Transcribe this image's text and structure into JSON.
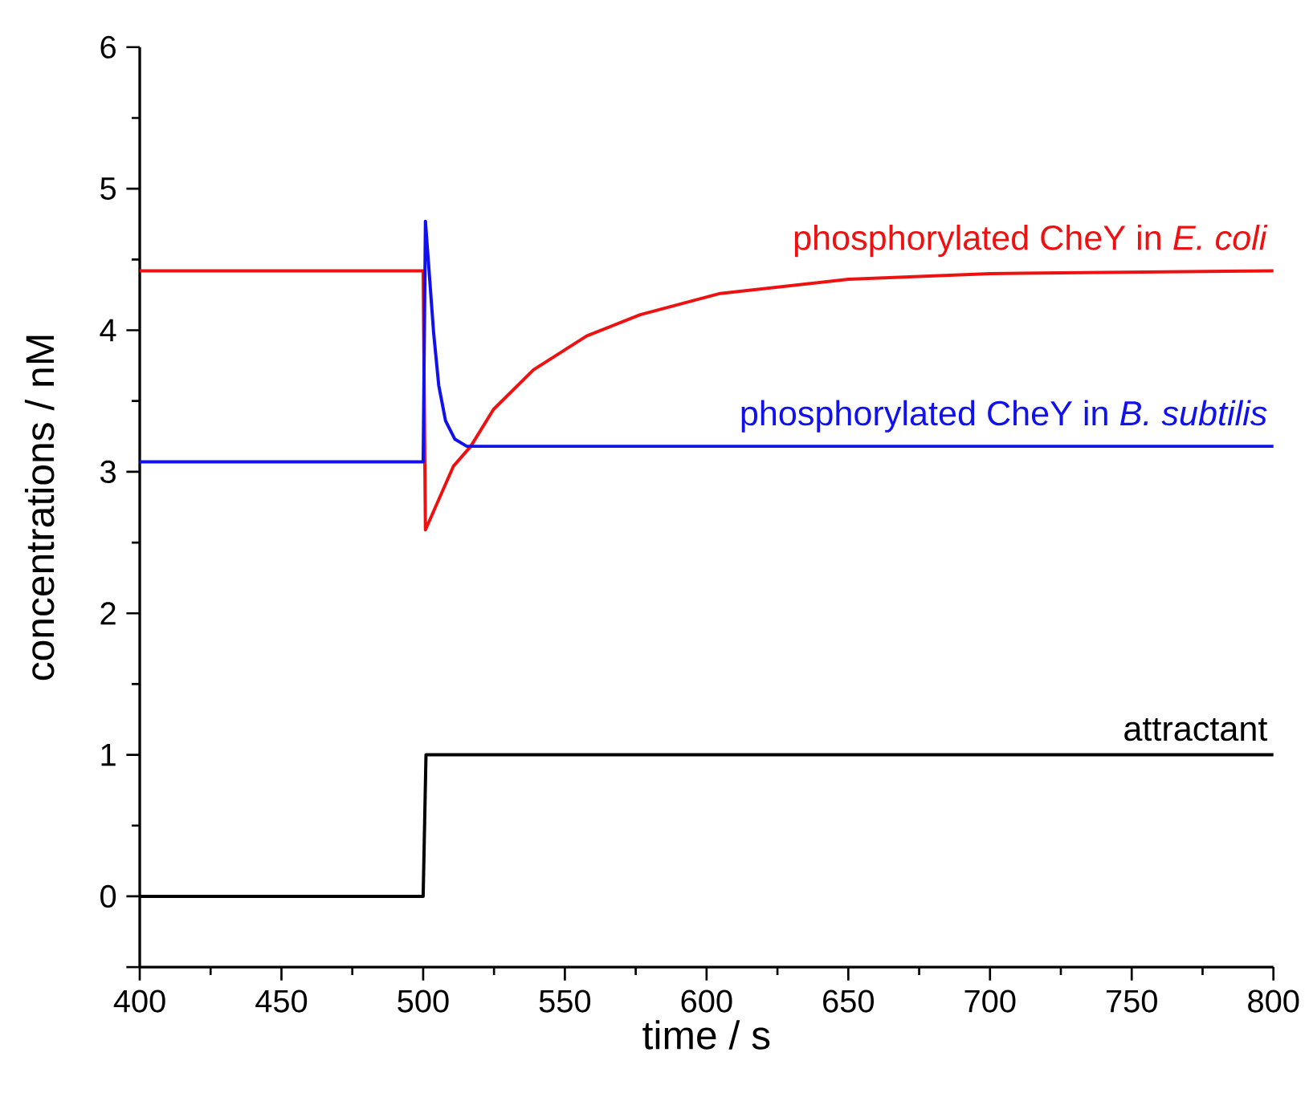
{
  "chart_data": {
    "type": "line",
    "xlabel": "time / s",
    "ylabel": "concentrations / nM",
    "xlim": [
      400,
      800
    ],
    "ylim": [
      -0.5,
      6
    ],
    "xticks": [
      400,
      450,
      500,
      550,
      600,
      650,
      700,
      750,
      800
    ],
    "yticks": [
      0,
      1,
      2,
      3,
      4,
      5,
      6
    ],
    "series": [
      {
        "name": "phosphorylated CheY in *E. coli*",
        "color": "#ee1111",
        "x": [
          400,
          500,
          500.8,
          510.7,
          516.8,
          524.8,
          538.9,
          557.7,
          576.6,
          604.8,
          650,
          700,
          800
        ],
        "values": [
          4.42,
          4.42,
          2.59,
          3.04,
          3.18,
          3.44,
          3.72,
          3.96,
          4.11,
          4.26,
          4.36,
          4.4,
          4.42
        ]
      },
      {
        "name": "phosphorylated CheY in *B. subtilis*",
        "color": "#1111ee",
        "x": [
          400,
          500,
          500.8,
          503.7,
          505.5,
          507.9,
          511.2,
          515.4,
          800
        ],
        "values": [
          3.07,
          3.07,
          4.77,
          3.98,
          3.61,
          3.36,
          3.23,
          3.18,
          3.18
        ]
      },
      {
        "name": "attractant",
        "color": "#000000",
        "x": [
          400,
          500,
          501,
          800
        ],
        "values": [
          0,
          0,
          1,
          1
        ]
      }
    ]
  }
}
